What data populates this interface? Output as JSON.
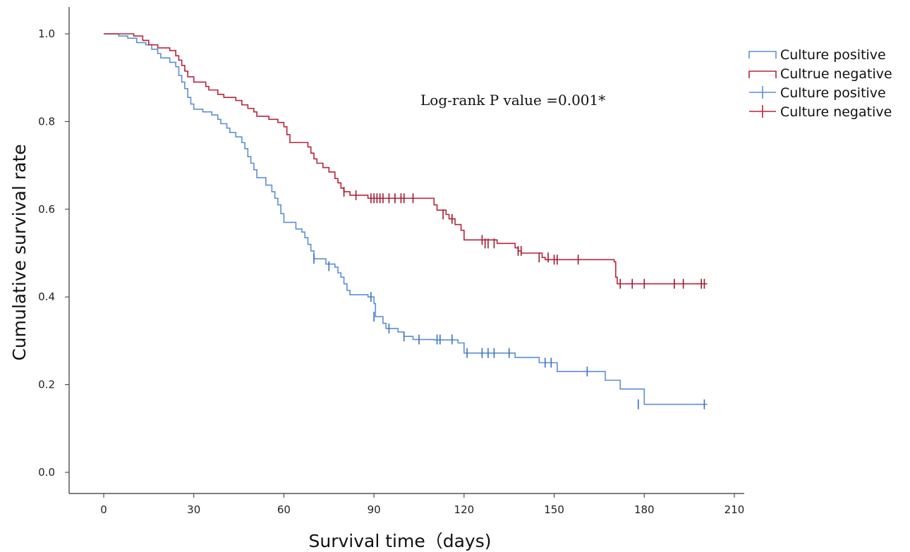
{
  "chart_data": {
    "type": "line",
    "subtype": "kaplan-meier step",
    "xlabel": "Survival time（days)",
    "ylabel": "Cumulative survival rate",
    "xlim": [
      0,
      210
    ],
    "ylim": [
      0.0,
      1.0
    ],
    "x_ticks": [
      "0",
      "30",
      "60",
      "90",
      "120",
      "150",
      "180",
      "210"
    ],
    "y_ticks": [
      "0.0",
      "0.2",
      "0.4",
      "0.6",
      "0.8",
      "1.0"
    ],
    "grid": false,
    "legend_position": "top-right",
    "legend": [
      "Culture positive",
      "Cultrue negative",
      "Culture positive",
      "Culture negative"
    ],
    "annotation": "Log-rank P value =0.001*",
    "series": [
      {
        "name": "Culture positive",
        "color": "#5b8fd6",
        "censor_color": "#3a6fc4",
        "steps": [
          [
            0,
            1.0
          ],
          [
            5,
            0.995
          ],
          [
            8,
            0.99
          ],
          [
            11,
            0.98
          ],
          [
            14,
            0.975
          ],
          [
            16,
            0.965
          ],
          [
            18,
            0.955
          ],
          [
            19,
            0.945
          ],
          [
            22,
            0.935
          ],
          [
            24,
            0.925
          ],
          [
            25,
            0.905
          ],
          [
            26,
            0.89
          ],
          [
            27,
            0.875
          ],
          [
            28,
            0.855
          ],
          [
            29,
            0.84
          ],
          [
            30,
            0.828
          ],
          [
            33,
            0.822
          ],
          [
            36,
            0.815
          ],
          [
            38,
            0.805
          ],
          [
            39,
            0.795
          ],
          [
            41,
            0.785
          ],
          [
            42,
            0.775
          ],
          [
            44,
            0.765
          ],
          [
            46,
            0.752
          ],
          [
            47,
            0.738
          ],
          [
            48,
            0.72
          ],
          [
            49,
            0.705
          ],
          [
            50,
            0.69
          ],
          [
            51,
            0.672
          ],
          [
            54,
            0.655
          ],
          [
            56,
            0.64
          ],
          [
            57,
            0.625
          ],
          [
            58,
            0.61
          ],
          [
            59,
            0.59
          ],
          [
            60,
            0.57
          ],
          [
            64,
            0.555
          ],
          [
            66,
            0.548
          ],
          [
            67,
            0.535
          ],
          [
            68,
            0.52
          ],
          [
            69,
            0.505
          ],
          [
            70,
            0.487
          ],
          [
            74,
            0.475
          ],
          [
            77,
            0.468
          ],
          [
            78,
            0.455
          ],
          [
            79,
            0.445
          ],
          [
            80,
            0.43
          ],
          [
            81,
            0.415
          ],
          [
            82,
            0.405
          ],
          [
            88,
            0.4
          ],
          [
            90,
            0.385
          ],
          [
            90.5,
            0.355
          ],
          [
            93,
            0.34
          ],
          [
            94,
            0.328
          ],
          [
            98,
            0.32
          ],
          [
            100,
            0.31
          ],
          [
            103,
            0.303
          ],
          [
            110,
            0.302
          ],
          [
            118,
            0.295
          ],
          [
            120,
            0.272
          ],
          [
            137,
            0.262
          ],
          [
            145,
            0.25
          ],
          [
            151,
            0.23
          ],
          [
            167,
            0.21
          ],
          [
            172,
            0.19
          ],
          [
            180,
            0.155
          ],
          [
            201,
            0.155
          ]
        ],
        "censored": [
          [
            70,
            0.487
          ],
          [
            75,
            0.47
          ],
          [
            89,
            0.4
          ],
          [
            90,
            0.355
          ],
          [
            95,
            0.328
          ],
          [
            100,
            0.31
          ],
          [
            105,
            0.303
          ],
          [
            111,
            0.303
          ],
          [
            112,
            0.303
          ],
          [
            116,
            0.303
          ],
          [
            121,
            0.272
          ],
          [
            126,
            0.272
          ],
          [
            128,
            0.272
          ],
          [
            130,
            0.272
          ],
          [
            135,
            0.272
          ],
          [
            147,
            0.25
          ],
          [
            149,
            0.25
          ],
          [
            161,
            0.23
          ],
          [
            178,
            0.155
          ],
          [
            200,
            0.155
          ]
        ]
      },
      {
        "name": "Cultrue negative",
        "color": "#b8243a",
        "censor_color": "#9c1a30",
        "steps": [
          [
            0,
            1.0
          ],
          [
            10,
            0.995
          ],
          [
            13,
            0.985
          ],
          [
            15,
            0.975
          ],
          [
            18,
            0.968
          ],
          [
            22,
            0.962
          ],
          [
            24,
            0.95
          ],
          [
            25,
            0.94
          ],
          [
            26,
            0.928
          ],
          [
            27,
            0.915
          ],
          [
            28,
            0.902
          ],
          [
            30,
            0.89
          ],
          [
            34,
            0.88
          ],
          [
            35,
            0.872
          ],
          [
            38,
            0.862
          ],
          [
            40,
            0.855
          ],
          [
            44,
            0.848
          ],
          [
            46,
            0.838
          ],
          [
            48,
            0.83
          ],
          [
            50,
            0.822
          ],
          [
            51,
            0.812
          ],
          [
            55,
            0.805
          ],
          [
            58,
            0.798
          ],
          [
            60,
            0.788
          ],
          [
            61,
            0.77
          ],
          [
            62,
            0.752
          ],
          [
            68,
            0.742
          ],
          [
            69,
            0.728
          ],
          [
            70,
            0.715
          ],
          [
            71,
            0.705
          ],
          [
            73,
            0.695
          ],
          [
            75,
            0.685
          ],
          [
            77,
            0.67
          ],
          [
            78,
            0.66
          ],
          [
            79,
            0.648
          ],
          [
            80,
            0.64
          ],
          [
            82,
            0.632
          ],
          [
            88,
            0.625
          ],
          [
            110,
            0.61
          ],
          [
            111,
            0.598
          ],
          [
            114,
            0.588
          ],
          [
            115,
            0.578
          ],
          [
            117,
            0.565
          ],
          [
            119,
            0.552
          ],
          [
            120,
            0.53
          ],
          [
            131,
            0.522
          ],
          [
            137,
            0.512
          ],
          [
            138,
            0.505
          ],
          [
            139,
            0.5
          ],
          [
            146,
            0.49
          ],
          [
            147,
            0.485
          ],
          [
            170,
            0.48
          ],
          [
            170.5,
            0.445
          ],
          [
            171,
            0.43
          ],
          [
            201,
            0.43
          ]
        ],
        "censored": [
          [
            80,
            0.64
          ],
          [
            84,
            0.632
          ],
          [
            89,
            0.625
          ],
          [
            90,
            0.625
          ],
          [
            91,
            0.625
          ],
          [
            92,
            0.625
          ],
          [
            93,
            0.625
          ],
          [
            95,
            0.625
          ],
          [
            97,
            0.625
          ],
          [
            99,
            0.625
          ],
          [
            100,
            0.625
          ],
          [
            103,
            0.625
          ],
          [
            113,
            0.588
          ],
          [
            116,
            0.578
          ],
          [
            126,
            0.53
          ],
          [
            127,
            0.522
          ],
          [
            128,
            0.522
          ],
          [
            130,
            0.522
          ],
          [
            138,
            0.505
          ],
          [
            139,
            0.505
          ],
          [
            145,
            0.49
          ],
          [
            148,
            0.49
          ],
          [
            150,
            0.485
          ],
          [
            151,
            0.485
          ],
          [
            158,
            0.485
          ],
          [
            172,
            0.43
          ],
          [
            176,
            0.43
          ],
          [
            180,
            0.43
          ],
          [
            190,
            0.43
          ],
          [
            193,
            0.43
          ],
          [
            199,
            0.43
          ],
          [
            200,
            0.43
          ]
        ]
      }
    ]
  }
}
